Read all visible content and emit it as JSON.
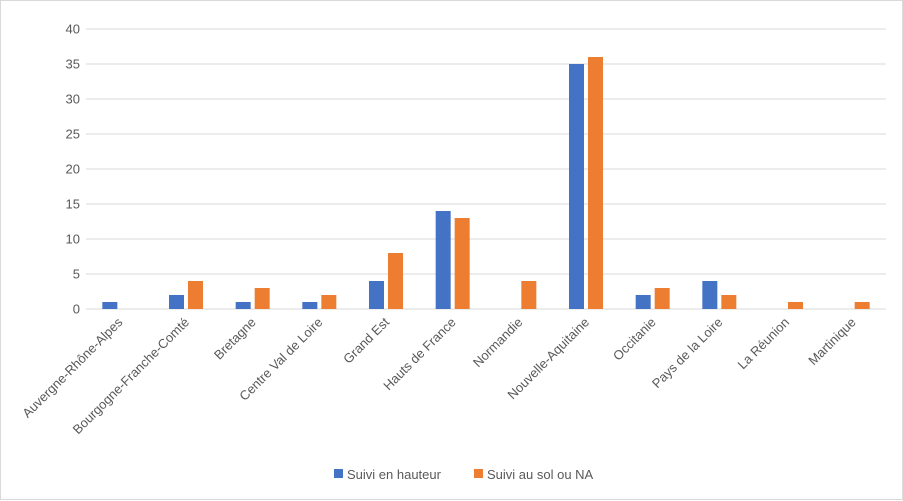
{
  "chart_data": {
    "type": "bar",
    "categories": [
      "Auvergne-Rhône-Alpes",
      "Bourgogne-Franche-Comté",
      "Bretagne",
      "Centre Val de Loire",
      "Grand Est",
      "Hauts de France",
      "Normandie",
      "Nouvelle-Aquitaine",
      "Occitanie",
      "Pays de la Loire",
      "La Réunion",
      "Martinique"
    ],
    "series": [
      {
        "name": "Suivi en hauteur",
        "color": "#4472C4",
        "values": [
          1,
          2,
          1,
          1,
          4,
          14,
          0,
          35,
          2,
          4,
          0,
          0
        ]
      },
      {
        "name": "Suivi au sol ou NA",
        "color": "#ED7D31",
        "values": [
          0,
          4,
          3,
          2,
          8,
          13,
          4,
          36,
          3,
          2,
          1,
          1
        ]
      }
    ],
    "title": "",
    "xlabel": "",
    "ylabel": "",
    "ylim": [
      0,
      40
    ],
    "yticks": [
      0,
      5,
      10,
      15,
      20,
      25,
      30,
      35,
      40
    ],
    "grid": true,
    "legend": "bottom"
  }
}
